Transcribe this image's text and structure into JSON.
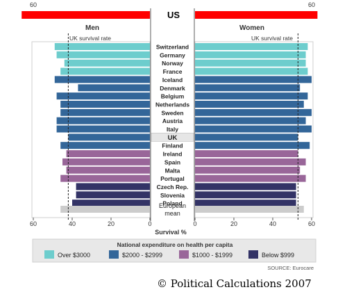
{
  "title": "US",
  "panel_men_label": "Men",
  "panel_women_label": "Women",
  "uk_rate_label": "UK survival rate",
  "xlabel": "Survival %",
  "legend_title": "National expenditure on health per capita",
  "source": "SOURCE: Eurocare",
  "copyright": "© Political Calculations 2007",
  "colors": {
    "tier1": "#6dcdcd",
    "tier2": "#336699",
    "tier3": "#996699",
    "tier4": "#333366",
    "mean": "#cccccc",
    "us": "#ff0000",
    "uk_row": "#e6e6e6"
  },
  "chart_data": {
    "type": "bar",
    "orientation": "horizontal-back-to-back",
    "xlim": [
      0,
      60
    ],
    "ticks": [
      0,
      20,
      40,
      60
    ],
    "us_value": {
      "men": 66,
      "women": 63
    },
    "uk_value": {
      "men": 42,
      "women": 53
    },
    "legend": [
      {
        "label": "Over $3000",
        "tier": "tier1"
      },
      {
        "label": "$2000 - $2999",
        "tier": "tier2"
      },
      {
        "label": "$1000 - $1999",
        "tier": "tier3"
      },
      {
        "label": "Below $999",
        "tier": "tier4"
      }
    ],
    "rows": [
      {
        "label": "Switzerland",
        "men": 49,
        "women": 58,
        "tier": "tier1"
      },
      {
        "label": "Germany",
        "men": 48,
        "women": 57,
        "tier": "tier1"
      },
      {
        "label": "Norway",
        "men": 44,
        "women": 57,
        "tier": "tier1"
      },
      {
        "label": "France",
        "men": 46,
        "women": 58,
        "tier": "tier1"
      },
      {
        "label": "Iceland",
        "men": 49,
        "women": 60,
        "tier": "tier2"
      },
      {
        "label": "Denmark",
        "men": 37,
        "women": 54,
        "tier": "tier2"
      },
      {
        "label": "Belgium",
        "men": 48,
        "women": 58,
        "tier": "tier2"
      },
      {
        "label": "Netherlands",
        "men": 46,
        "women": 56,
        "tier": "tier2"
      },
      {
        "label": "Sweden",
        "men": 46,
        "women": 60,
        "tier": "tier2"
      },
      {
        "label": "Austria",
        "men": 48,
        "women": 57,
        "tier": "tier2"
      },
      {
        "label": "Italy",
        "men": 48,
        "women": 60,
        "tier": "tier2"
      },
      {
        "label": "UK",
        "men": 42,
        "women": 53,
        "tier": "tier2"
      },
      {
        "label": "Finland",
        "men": 46,
        "women": 59,
        "tier": "tier2"
      },
      {
        "label": "Ireland",
        "men": 43,
        "women": 53,
        "tier": "tier3"
      },
      {
        "label": "Spain",
        "men": 45,
        "women": 57,
        "tier": "tier3"
      },
      {
        "label": "Malta",
        "men": 43,
        "women": 54,
        "tier": "tier3"
      },
      {
        "label": "Portugal",
        "men": 46,
        "women": 57,
        "tier": "tier3"
      },
      {
        "label": "Czech Rep.",
        "men": 38,
        "women": 52,
        "tier": "tier4"
      },
      {
        "label": "Slovenia",
        "men": 38,
        "women": 52,
        "tier": "tier4"
      },
      {
        "label": "Poland",
        "men": 40,
        "women": 52,
        "tier": "tier4"
      },
      {
        "label": "European mean",
        "lines": [
          "European",
          "mean"
        ],
        "men": 46,
        "women": 56,
        "tier": "mean"
      }
    ]
  }
}
